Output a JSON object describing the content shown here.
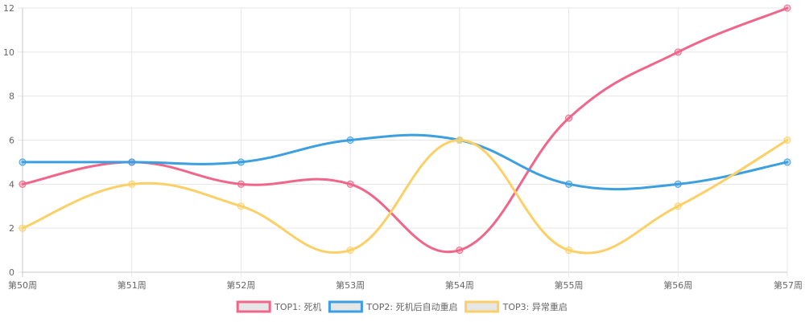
{
  "chart_data": {
    "type": "line",
    "categories": [
      "第50周",
      "第51周",
      "第52周",
      "第53周",
      "第54周",
      "第55周",
      "第56周",
      "第57周"
    ],
    "series": [
      {
        "name": "TOP1: 死机",
        "color": "#f0668a",
        "values": [
          4,
          5,
          4,
          4,
          1,
          7,
          10,
          12
        ]
      },
      {
        "name": "TOP2: 死机后自动重启",
        "color": "#3b9fe0",
        "values": [
          5,
          5,
          5,
          6,
          6,
          4,
          4,
          5
        ]
      },
      {
        "name": "TOP3: 异常重启",
        "color": "#fbd067",
        "values": [
          2,
          4,
          3,
          1,
          6,
          1,
          3,
          6
        ]
      }
    ],
    "ylim": [
      0,
      12
    ],
    "yticks": [
      0,
      2,
      4,
      6,
      8,
      10,
      12
    ],
    "grid": true,
    "legend_position": "bottom",
    "curve": "smooth"
  }
}
